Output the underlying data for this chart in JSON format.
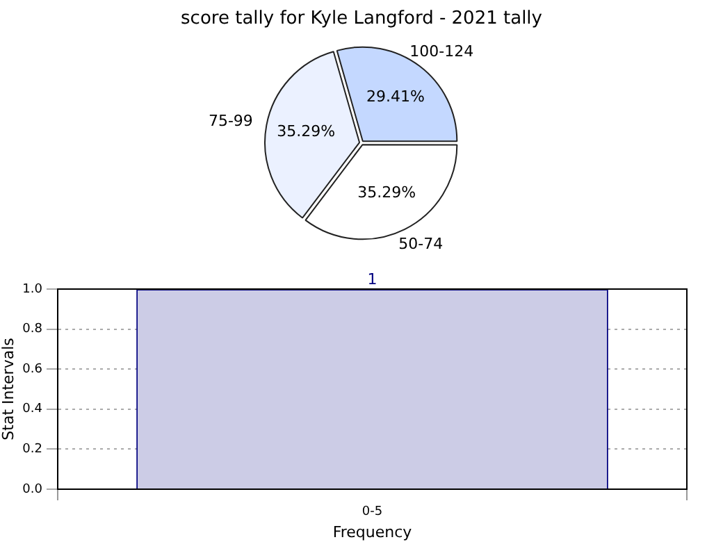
{
  "chart_data": [
    {
      "type": "pie",
      "title": "score tally for Kyle Langford - 2021 tally",
      "categories": [
        "50-74",
        "75-99",
        "100-124"
      ],
      "values": [
        35.29,
        35.29,
        29.41
      ],
      "colors": [
        "#ffffff",
        "#ebf1ff",
        "#c4d8ff"
      ],
      "value_labels": [
        "35.29%",
        "35.29%",
        "29.41%"
      ]
    },
    {
      "type": "bar",
      "xlabel": "Frequency",
      "ylabel": "Stat Intervals",
      "categories": [
        "0-5"
      ],
      "values": [
        1
      ],
      "color": "#cccce6",
      "data_labels": true,
      "ylim": [
        0,
        1
      ],
      "yticks": [
        {
          "value": 0,
          "label": "0.0"
        },
        {
          "value": 0.2,
          "label": "0.2"
        },
        {
          "value": 0.4,
          "label": "0.4"
        },
        {
          "value": 0.6,
          "label": "0.6"
        },
        {
          "value": 0.8,
          "label": "0.8"
        },
        {
          "value": 1,
          "label": "1.0"
        }
      ],
      "grid": true
    }
  ]
}
